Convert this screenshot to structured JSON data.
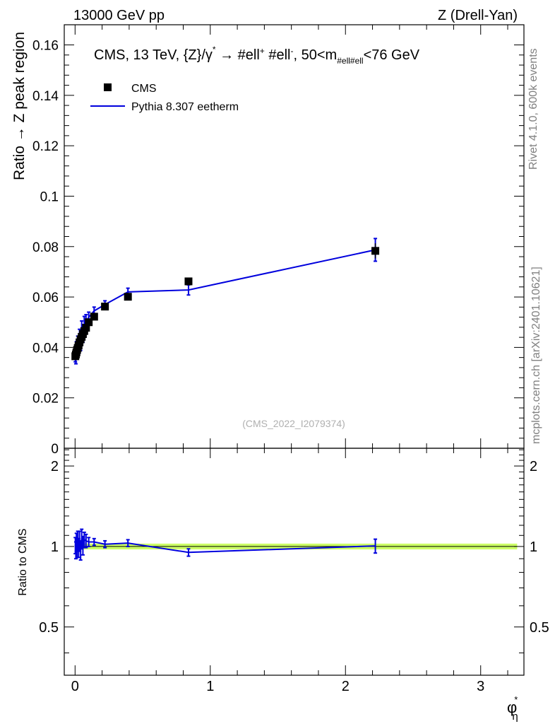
{
  "header": {
    "left": "13000 GeV pp",
    "right": "Z (Drell-Yan)"
  },
  "side_labels": {
    "rivet": "Rivet 4.1.0,  600k events",
    "mcplots": "mcplots.cern.ch [arXiv:2401.10621]"
  },
  "chart_data": [
    {
      "type": "scatter",
      "panel": "main",
      "title_parts": {
        "prefix": "CMS, 13 TeV, {Z}/γ",
        "star": "*",
        "arrow": " →  #ell",
        "plus": "+",
        "mid": " #ell",
        "minus": "-",
        "after": ", 50<m",
        "sub": "#ell#ell",
        "suffix": "<76 GeV"
      },
      "ylabel": "Ratio → Z peak region",
      "xlim": [
        -0.08,
        3.32
      ],
      "ylim": [
        0,
        0.168
      ],
      "yticks": [
        0,
        0.02,
        0.04,
        0.06,
        0.08,
        0.1,
        0.12,
        0.14,
        0.16
      ],
      "ytick_labels": [
        "0",
        "0.02",
        "0.04",
        "0.06",
        "0.08",
        "0.1",
        "0.12",
        "0.14",
        "0.16"
      ],
      "watermark": "(CMS_2022_I2079374)",
      "legend": [
        {
          "name": "CMS",
          "style": "marker",
          "color": "#000000"
        },
        {
          "name": "Pythia 8.307 eetherm",
          "style": "line",
          "color": "#0000dd"
        }
      ],
      "series": [
        {
          "name": "CMS",
          "x": [
            0.002,
            0.006,
            0.01,
            0.015,
            0.02,
            0.026,
            0.033,
            0.041,
            0.049,
            0.058,
            0.068,
            0.081,
            0.101,
            0.141,
            0.221,
            0.391,
            0.839,
            2.221
          ],
          "y": [
            0.0365,
            0.0372,
            0.038,
            0.039,
            0.0398,
            0.0408,
            0.042,
            0.0432,
            0.0442,
            0.0453,
            0.0465,
            0.0478,
            0.05,
            0.0522,
            0.0562,
            0.0601,
            0.0662,
            0.0783
          ],
          "err": [
            0.001,
            0.001,
            0.001,
            0.001,
            0.001,
            0.001,
            0.001,
            0.001,
            0.001,
            0.001,
            0.001,
            0.001,
            0.001,
            0.001,
            0.0012,
            0.0012,
            0.0015,
            0.003
          ]
        },
        {
          "name": "Pythia 8.307 eetherm",
          "x": [
            0.002,
            0.006,
            0.01,
            0.015,
            0.02,
            0.026,
            0.033,
            0.041,
            0.049,
            0.058,
            0.068,
            0.081,
            0.101,
            0.141,
            0.221,
            0.391,
            0.839,
            2.221
          ],
          "y": [
            0.0368,
            0.036,
            0.0395,
            0.0385,
            0.0415,
            0.0405,
            0.044,
            0.042,
            0.047,
            0.0455,
            0.049,
            0.05,
            0.052,
            0.0545,
            0.057,
            0.062,
            0.0628,
            0.0787
          ],
          "err": [
            0.0025,
            0.0025,
            0.0028,
            0.0028,
            0.003,
            0.003,
            0.0032,
            0.0032,
            0.0035,
            0.0035,
            0.0033,
            0.003,
            0.002,
            0.0015,
            0.0015,
            0.0015,
            0.002,
            0.0045
          ]
        }
      ]
    },
    {
      "type": "line",
      "panel": "ratio",
      "ylabel": "Ratio to CMS",
      "xlabel": "φ",
      "xlabel_sup": "*",
      "xlabel_sub": "η",
      "xlim": [
        -0.08,
        3.32
      ],
      "ylim": [
        0.33,
        2.33
      ],
      "yticks": [
        0.5,
        1,
        2
      ],
      "ytick_labels": [
        "0.5",
        "1",
        "2"
      ],
      "xticks": [
        0,
        1,
        2,
        3
      ],
      "xtick_labels": [
        "0",
        "1",
        "2",
        "3"
      ],
      "band": {
        "center": 1.0,
        "half_width": 0.025,
        "color": "#ccff66"
      },
      "series": [
        {
          "name": "Pythia 8.307 eetherm",
          "x": [
            0.002,
            0.006,
            0.01,
            0.015,
            0.02,
            0.026,
            0.033,
            0.041,
            0.049,
            0.058,
            0.068,
            0.081,
            0.101,
            0.141,
            0.221,
            0.391,
            0.839,
            2.221
          ],
          "y": [
            1.01,
            0.97,
            1.04,
            0.99,
            1.05,
            0.99,
            1.05,
            0.97,
            1.07,
            1.01,
            1.06,
            1.05,
            1.04,
            1.04,
            1.02,
            1.03,
            0.95,
            1.005
          ],
          "err": [
            0.07,
            0.07,
            0.08,
            0.08,
            0.09,
            0.08,
            0.09,
            0.08,
            0.09,
            0.08,
            0.07,
            0.06,
            0.04,
            0.03,
            0.03,
            0.03,
            0.03,
            0.06
          ]
        }
      ]
    }
  ]
}
